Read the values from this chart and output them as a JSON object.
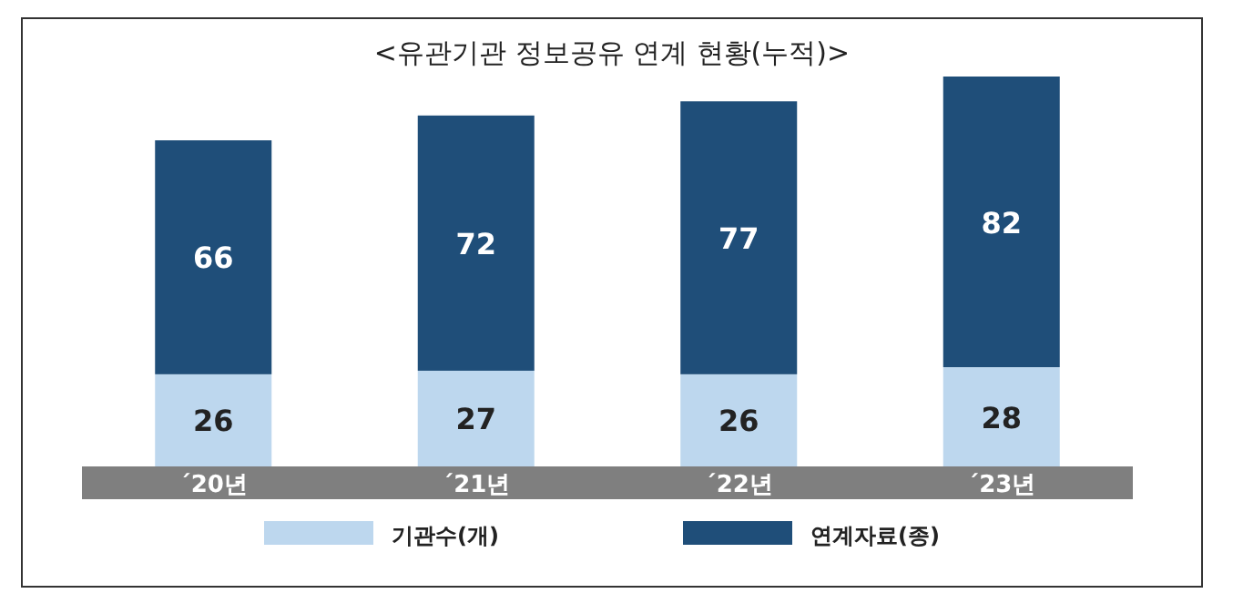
{
  "chart_data": {
    "type": "bar",
    "title": "<유관기관 정보공유 연계 현황(누적)>",
    "categories": [
      "´20년",
      "´21년",
      "´22년",
      "´23년"
    ],
    "stacked": true,
    "data_labels": true,
    "legend": "bottom",
    "series": [
      {
        "name": "기관수(개)",
        "color": "#bdd7ee",
        "values": [
          26,
          27,
          26,
          28
        ]
      },
      {
        "name": "연계자료(종)",
        "color": "#1f4e79",
        "values": [
          66,
          72,
          77,
          82
        ]
      }
    ]
  }
}
